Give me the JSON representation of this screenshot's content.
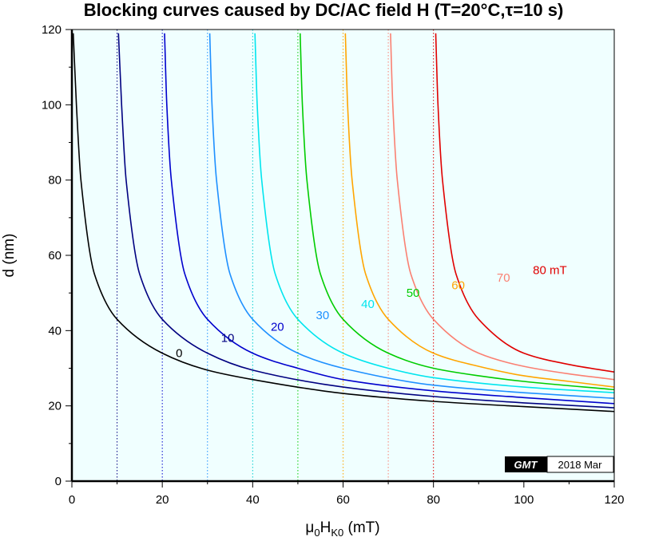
{
  "chart_data": {
    "type": "line",
    "title_parts": [
      "Blocking curves caused by DC/AC field H (T=20°C,",
      "τ",
      "=10 s)"
    ],
    "xlabel_parts": [
      "μ",
      "0",
      "H",
      "K0",
      " (mT)"
    ],
    "ylabel": "d (nm)",
    "xlim": [
      0,
      120
    ],
    "ylim": [
      0,
      120
    ],
    "x_ticks": [
      0,
      20,
      40,
      60,
      80,
      100,
      120
    ],
    "y_ticks": [
      0,
      20,
      40,
      60,
      80,
      100,
      120
    ],
    "background": "#f0ffff",
    "guides": [
      {
        "x": 10,
        "color": "#000080"
      },
      {
        "x": 20,
        "color": "#0000cd"
      },
      {
        "x": 30,
        "color": "#1e90ff"
      },
      {
        "x": 40,
        "color": "#00ced1"
      },
      {
        "x": 50,
        "color": "#00cc00"
      },
      {
        "x": 60,
        "color": "#ffa500"
      },
      {
        "x": 70,
        "color": "#fa8072"
      },
      {
        "x": 80,
        "color": "#e00000"
      }
    ],
    "series": [
      {
        "name": "0",
        "H": 0,
        "color": "#000000",
        "label": "0",
        "label_at": [
          23,
          33
        ],
        "x": [
          0.3,
          1,
          2,
          5,
          10,
          20,
          30,
          40,
          60,
          80,
          100,
          120
        ],
        "y": [
          119,
          100,
          80,
          55,
          43,
          34,
          29.5,
          27,
          23.3,
          21.2,
          19.8,
          18.5
        ]
      },
      {
        "name": "10",
        "H": 10,
        "color": "#000080",
        "label": "10",
        "label_at": [
          33,
          37
        ],
        "x": [
          10.3,
          11,
          12,
          15,
          20,
          30,
          40,
          60,
          80,
          100,
          120
        ],
        "y": [
          119,
          100,
          80,
          55,
          43,
          34,
          29.5,
          25,
          22.5,
          20.8,
          19.5
        ]
      },
      {
        "name": "20",
        "H": 20,
        "color": "#0000cd",
        "label": "20",
        "label_at": [
          44,
          40
        ],
        "x": [
          20.5,
          21,
          22,
          25,
          30,
          40,
          50,
          60,
          80,
          100,
          120
        ],
        "y": [
          119,
          100,
          80,
          55,
          43,
          34,
          30,
          27,
          24,
          22.2,
          20.6
        ]
      },
      {
        "name": "30",
        "H": 30,
        "color": "#1e90ff",
        "label": "30",
        "label_at": [
          54,
          43
        ],
        "x": [
          30.5,
          31,
          32,
          35,
          40,
          50,
          60,
          80,
          100,
          120
        ],
        "y": [
          119,
          100,
          80,
          55,
          43,
          34,
          30,
          25.5,
          23.5,
          22
        ]
      },
      {
        "name": "40",
        "H": 40,
        "color": "#00e5ee",
        "label": "40",
        "label_at": [
          64,
          46
        ],
        "x": [
          40.5,
          41,
          42,
          45,
          50,
          60,
          70,
          80,
          100,
          120
        ],
        "y": [
          119,
          100,
          80,
          55,
          43,
          34,
          30,
          27.5,
          25,
          23.5
        ]
      },
      {
        "name": "50",
        "H": 50,
        "color": "#00cc00",
        "label": "50",
        "label_at": [
          74,
          49
        ],
        "x": [
          50.5,
          51,
          52,
          55,
          60,
          70,
          80,
          90,
          100,
          120
        ],
        "y": [
          119,
          100,
          80,
          55,
          43,
          34,
          30,
          28,
          26.5,
          24.3
        ]
      },
      {
        "name": "60",
        "H": 60,
        "color": "#ffa500",
        "label": "60",
        "label_at": [
          84,
          51
        ],
        "x": [
          60.5,
          61,
          62,
          65,
          70,
          80,
          90,
          100,
          110,
          120
        ],
        "y": [
          119,
          100,
          80,
          55,
          43,
          34,
          30.5,
          28,
          26.5,
          25
        ]
      },
      {
        "name": "70",
        "H": 70,
        "color": "#fa8072",
        "label": "70",
        "label_at": [
          94,
          53
        ],
        "x": [
          70.5,
          71,
          72,
          75,
          80,
          90,
          100,
          110,
          120
        ],
        "y": [
          119,
          100,
          80,
          55,
          43,
          34,
          30.5,
          28.5,
          27
        ]
      },
      {
        "name": "80 mT",
        "H": 80,
        "color": "#e00000",
        "label": "80 mT",
        "label_at": [
          102,
          55
        ],
        "x": [
          80.5,
          81,
          82,
          85,
          90,
          100,
          110,
          120
        ],
        "y": [
          119,
          100,
          80,
          55,
          43,
          34,
          31,
          29
        ]
      }
    ]
  },
  "badge": {
    "logo": "GMT",
    "date": "2018 Mar"
  }
}
